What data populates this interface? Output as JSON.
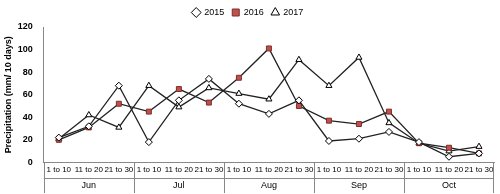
{
  "chart_data": {
    "type": "line",
    "y_label": "Precipitation (mm/ 10 days)",
    "categories": [
      "1 to 10",
      "11 to 20",
      "21 to 30",
      "1 to 10",
      "11 to 20",
      "21 to 30",
      "1 to 10",
      "11 to 20",
      "21 to 30",
      "1 to 10",
      "11 to 20",
      "21 to 30",
      "1 to 10",
      "11 to 20",
      "21 to 30"
    ],
    "category_groups": [
      "Jun",
      "Jul",
      "Aug",
      "Sep",
      "Oct"
    ],
    "series": [
      {
        "name": "2015",
        "color": "#000000",
        "marker": "diamond",
        "values": [
          22,
          32,
          68,
          18,
          55,
          74,
          52,
          43,
          55,
          19,
          21,
          27,
          18,
          5,
          8
        ]
      },
      {
        "name": "2016",
        "color": "#c0504d",
        "marker": "square",
        "values": [
          20,
          31,
          52,
          45,
          65,
          53,
          75,
          101,
          50,
          37,
          34,
          45,
          17,
          13,
          8
        ]
      },
      {
        "name": "2017",
        "color": "#000000",
        "marker": "triangle",
        "values": [
          21,
          42,
          31,
          68,
          49,
          66,
          61,
          56,
          91,
          68,
          93,
          35,
          17,
          10,
          14
        ]
      }
    ],
    "ylim": [
      0,
      120
    ],
    "yticks": [
      0,
      20,
      40,
      60,
      80,
      100,
      120
    ],
    "grid": false,
    "legend": "top"
  }
}
